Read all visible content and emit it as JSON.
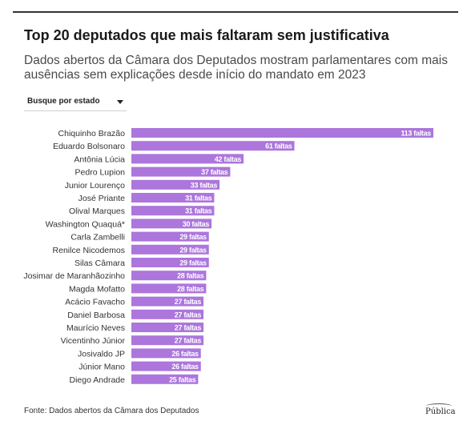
{
  "header": {
    "title": "Top 20 deputados que mais faltaram sem justificativa",
    "subtitle": "Dados abertos da Câmara dos Deputados mostram parlamentares com mais ausências sem explicações desde início do mandato em 2023"
  },
  "filter": {
    "label": "Busque por estado"
  },
  "footer": {
    "source": "Fonte: Dados abertos da Câmara dos Deputados",
    "logo_text": "Pública"
  },
  "colors": {
    "bar": "#ac76dc",
    "text": "#333333",
    "rule": "#333333"
  },
  "icons": {
    "dropdown": "chevron-down-icon"
  },
  "chart_data": {
    "type": "bar",
    "orientation": "horizontal",
    "categories": [
      "Chiquinho Brazão",
      "Eduardo Bolsonaro",
      "Antônia Lúcia",
      "Pedro Lupion",
      "Junior Lourenço",
      "José Priante",
      "Olival Marques",
      "Washington Quaquá*",
      "Carla Zambelli",
      "Renilce Nicodemos",
      "Silas Câmara",
      "Josimar de Maranhãozinho",
      "Magda Mofatto",
      "Acácio Favacho",
      "Daniel Barbosa",
      "Maurício Neves",
      "Vicentinho Júnior",
      "Josivaldo JP",
      "Júnior Mano",
      "Diego Andrade"
    ],
    "values": [
      113,
      61,
      42,
      37,
      33,
      31,
      31,
      30,
      29,
      29,
      29,
      28,
      28,
      27,
      27,
      27,
      27,
      26,
      26,
      25
    ],
    "data_labels": [
      "113 faltas",
      "61 faltas",
      "42 faltas",
      "37 faltas",
      "33 faltas",
      "31 faltas",
      "31 faltas",
      "30 faltas",
      "29 faltas",
      "29 faltas",
      "29 faltas",
      "28 faltas",
      "28 faltas",
      "27 faltas",
      "27 faltas",
      "27 faltas",
      "27 faltas",
      "26 faltas",
      "26 faltas",
      "25 faltas"
    ],
    "xlim": [
      0,
      113
    ],
    "grid": false,
    "legend": "none",
    "xlabel": "",
    "ylabel": ""
  }
}
